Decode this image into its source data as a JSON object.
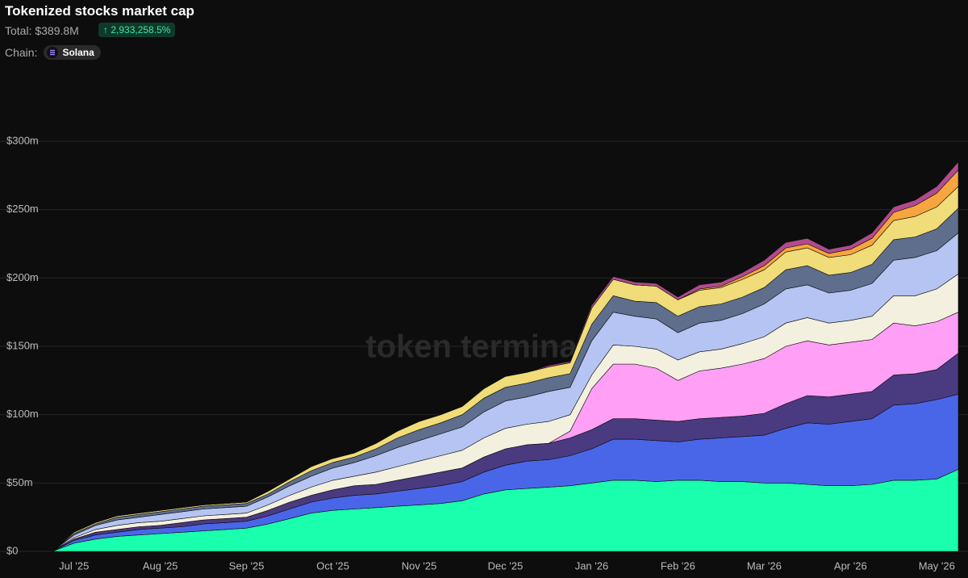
{
  "header": {
    "title": "Tokenized stocks market cap",
    "total": "Total: $389.8M",
    "change": "2,933,258.5%",
    "chain_label": "Chain:",
    "chain": "Solana"
  },
  "watermark": "token terminal",
  "chart_data": {
    "type": "stacked-area",
    "categories": [
      null,
      "Jul '25",
      null,
      null,
      null,
      "Aug '25",
      null,
      null,
      null,
      "Sep '25",
      null,
      null,
      null,
      "Oct '25",
      null,
      null,
      null,
      "Nov '25",
      null,
      null,
      null,
      "Dec '25",
      null,
      null,
      null,
      "Jan '26",
      null,
      null,
      null,
      "Feb '26",
      null,
      null,
      null,
      "Mar '26",
      null,
      null,
      null,
      "Apr '26",
      null,
      null,
      null,
      "May '26",
      null
    ],
    "ylim": [
      0,
      300
    ],
    "yticks": [
      {
        "value": 0,
        "label": "$0"
      },
      {
        "value": 50,
        "label": "$50m"
      },
      {
        "value": 100,
        "label": "$100m"
      },
      {
        "value": 150,
        "label": "$150m"
      },
      {
        "value": 200,
        "label": "$200m"
      },
      {
        "value": 250,
        "label": "$250m"
      },
      {
        "value": 300,
        "label": "$300m"
      }
    ],
    "grid": true,
    "series": [
      {
        "color": "#19ffae",
        "values": [
          0,
          6,
          9,
          11,
          12,
          13,
          14,
          15,
          16,
          17,
          20,
          24,
          28,
          30,
          31,
          32,
          33,
          34,
          35,
          37,
          42,
          45,
          46,
          47,
          48,
          50,
          52,
          52,
          51,
          52,
          52,
          51,
          51,
          50,
          50,
          49,
          48,
          48,
          49,
          52,
          52,
          53,
          60
        ]
      },
      {
        "color": "#4a66e8",
        "values": [
          0,
          2,
          3,
          3,
          4,
          4,
          4,
          5,
          5,
          5,
          6,
          7,
          8,
          9,
          10,
          10,
          11,
          12,
          13,
          14,
          16,
          18,
          20,
          20,
          22,
          25,
          30,
          30,
          30,
          28,
          30,
          32,
          33,
          35,
          40,
          45,
          45,
          47,
          48,
          55,
          56,
          58,
          55
        ]
      },
      {
        "color": "#4a3a80",
        "values": [
          0,
          1,
          2,
          2,
          2,
          2,
          3,
          3,
          3,
          3,
          4,
          5,
          5,
          6,
          7,
          7,
          8,
          9,
          10,
          10,
          11,
          12,
          12,
          12,
          13,
          14,
          15,
          15,
          15,
          15,
          15,
          15,
          15,
          16,
          18,
          20,
          20,
          20,
          20,
          22,
          22,
          22,
          30
        ]
      },
      {
        "color": "#ff9ff5",
        "values": [
          0,
          0,
          0,
          0,
          0,
          0,
          0,
          0,
          0,
          0,
          0,
          0,
          0,
          0,
          0,
          0,
          0,
          0,
          0,
          0,
          0,
          0,
          0,
          0,
          5,
          30,
          40,
          40,
          38,
          30,
          35,
          36,
          38,
          40,
          42,
          40,
          38,
          38,
          38,
          38,
          35,
          35,
          30
        ]
      },
      {
        "color": "#f3f0e0",
        "values": [
          0,
          1,
          2,
          3,
          3,
          3,
          3,
          3,
          3,
          3,
          4,
          5,
          6,
          7,
          7,
          9,
          10,
          11,
          12,
          13,
          14,
          15,
          15,
          16,
          12,
          10,
          14,
          13,
          14,
          15,
          14,
          14,
          15,
          16,
          17,
          17,
          16,
          16,
          17,
          20,
          22,
          24,
          28
        ]
      },
      {
        "color": "#b5c4f2",
        "values": [
          0,
          2,
          3,
          4,
          4,
          5,
          5,
          5,
          5,
          5,
          6,
          7,
          8,
          9,
          10,
          12,
          14,
          15,
          16,
          17,
          19,
          20,
          20,
          22,
          20,
          25,
          24,
          22,
          22,
          20,
          21,
          21,
          22,
          24,
          25,
          24,
          22,
          22,
          24,
          26,
          28,
          28,
          30
        ]
      },
      {
        "color": "#5e6e8c",
        "values": [
          0,
          1,
          1,
          2,
          2,
          2,
          2,
          2,
          2,
          2,
          2,
          3,
          4,
          4,
          4,
          5,
          7,
          8,
          8,
          9,
          10,
          10,
          10,
          10,
          10,
          12,
          12,
          11,
          12,
          12,
          12,
          12,
          12,
          12,
          14,
          14,
          13,
          13,
          14,
          15,
          15,
          16,
          18
        ]
      },
      {
        "color": "#f0dc78",
        "values": [
          0,
          1,
          1,
          1,
          1,
          1,
          1,
          1,
          1,
          1,
          2,
          2,
          3,
          3,
          3,
          4,
          5,
          6,
          6,
          6,
          7,
          8,
          8,
          8,
          8,
          12,
          12,
          12,
          12,
          12,
          12,
          12,
          13,
          13,
          13,
          13,
          13,
          13,
          14,
          14,
          15,
          16,
          16
        ]
      },
      {
        "color": "#f7a53f",
        "values": [
          0,
          0,
          0,
          0,
          0,
          0,
          0,
          0,
          0,
          0,
          0,
          0,
          0,
          0,
          0,
          0,
          0,
          0,
          0,
          0,
          0,
          0,
          0,
          0,
          0,
          0,
          0,
          0,
          0,
          0,
          1,
          1,
          2,
          3,
          3,
          3,
          3,
          4,
          5,
          6,
          8,
          10,
          12
        ]
      },
      {
        "color": "#b14b8e",
        "values": [
          0,
          0,
          0,
          0,
          0,
          0,
          0,
          0,
          0,
          0,
          0,
          0,
          0,
          0,
          0,
          0,
          0,
          0,
          0,
          0,
          0,
          0,
          0,
          1,
          1,
          2,
          2,
          2,
          2,
          2,
          3,
          3,
          3,
          4,
          4,
          4,
          3,
          3,
          4,
          4,
          4,
          5,
          6
        ]
      }
    ]
  }
}
